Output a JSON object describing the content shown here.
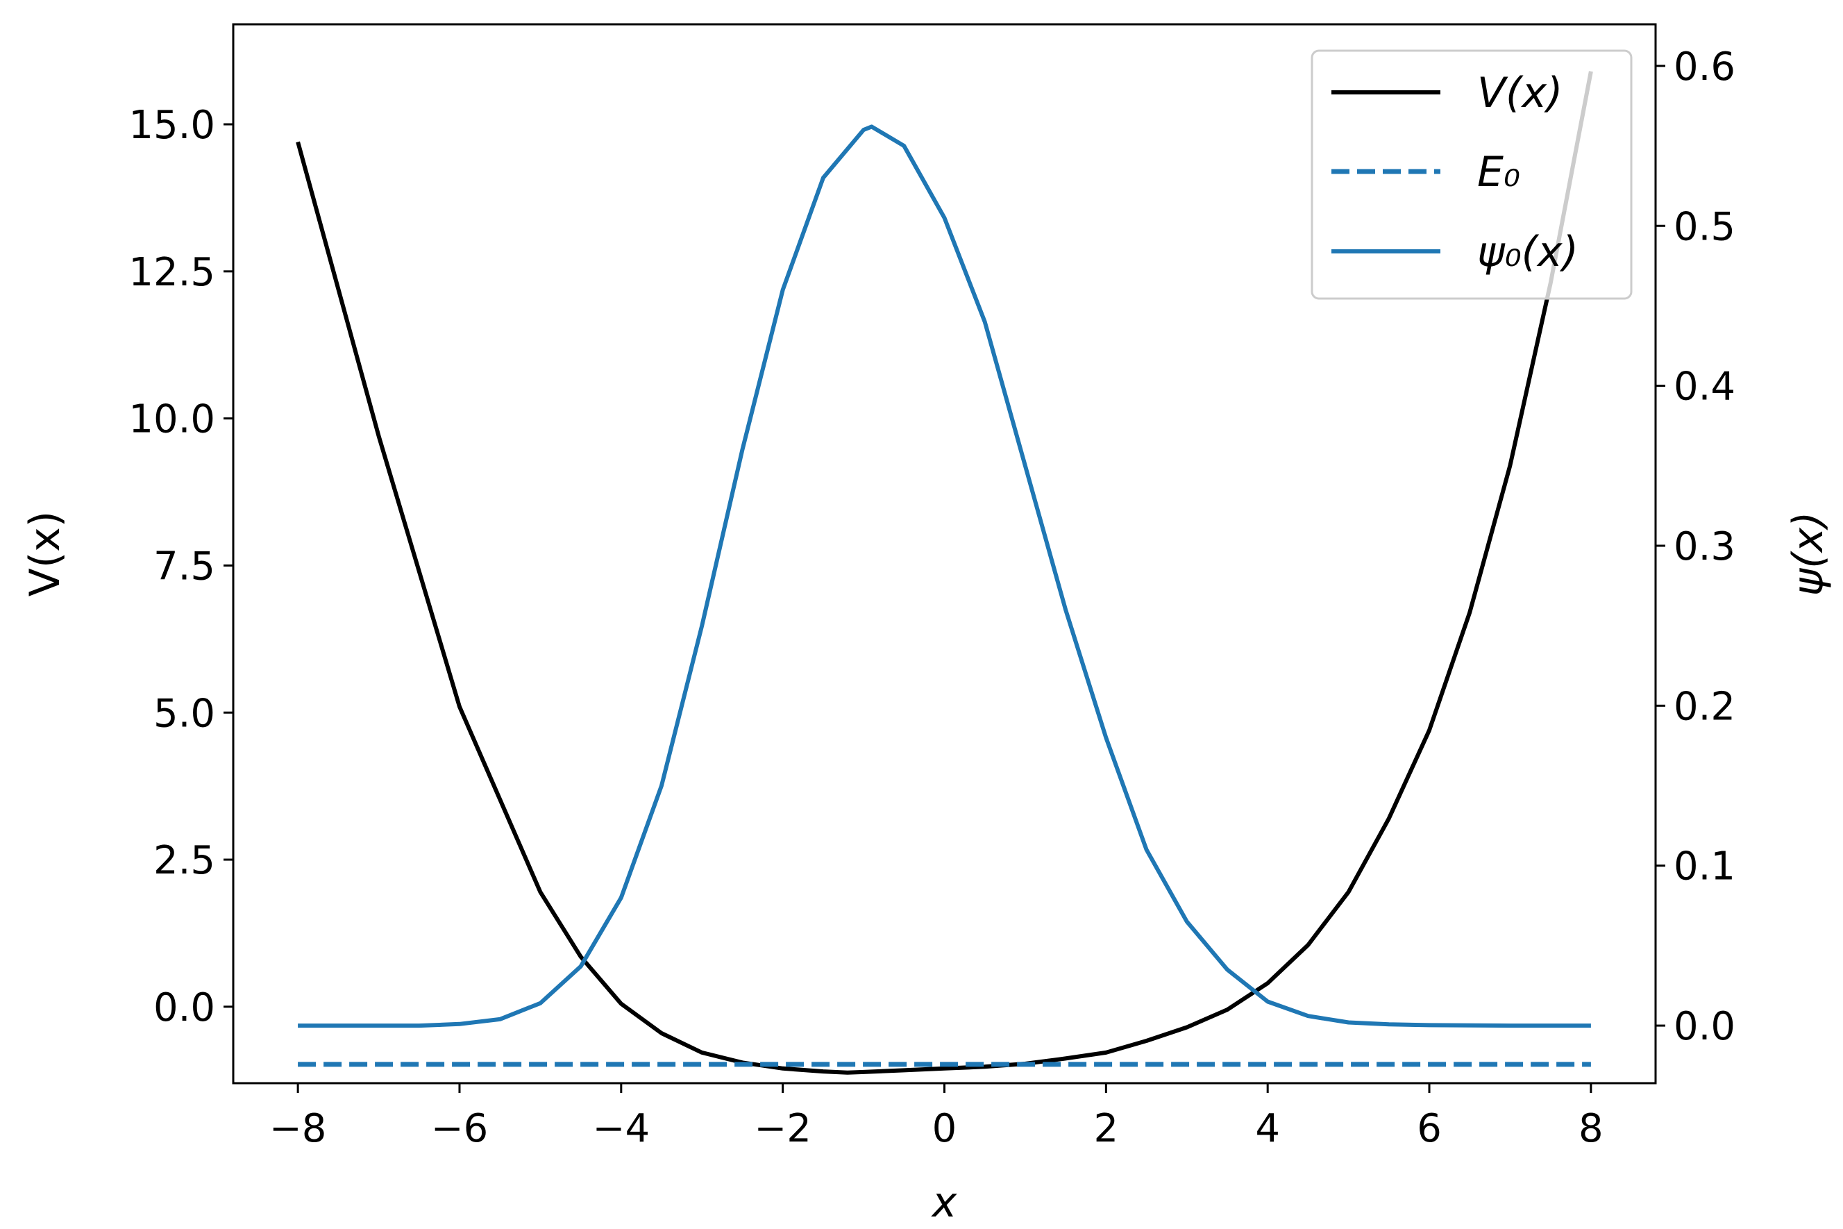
{
  "chart_data": {
    "type": "line",
    "xlabel": "x",
    "ylabel_left": "V(x)",
    "ylabel_right": "ψ(x)",
    "xlim": [
      -8.8,
      8.8
    ],
    "ylim_left": [
      -1.3,
      16.7
    ],
    "ylim_right": [
      -0.036,
      0.626
    ],
    "x_ticks": [
      -8,
      -6,
      -4,
      -2,
      0,
      2,
      4,
      6,
      8
    ],
    "x_tick_labels": [
      "−8",
      "−6",
      "−4",
      "−2",
      "0",
      "2",
      "4",
      "6",
      "8"
    ],
    "y_left_ticks": [
      0.0,
      2.5,
      5.0,
      7.5,
      10.0,
      12.5,
      15.0
    ],
    "y_left_tick_labels": [
      "0.0",
      "2.5",
      "5.0",
      "7.5",
      "10.0",
      "12.5",
      "15.0"
    ],
    "y_right_ticks": [
      0.0,
      0.1,
      0.2,
      0.3,
      0.4,
      0.5,
      0.6
    ],
    "y_right_tick_labels": [
      "0.0",
      "0.1",
      "0.2",
      "0.3",
      "0.4",
      "0.5",
      "0.6"
    ],
    "grid": false,
    "legend_position": "top-right",
    "series": [
      {
        "name": "V(x)",
        "axis": "left",
        "color": "#000000",
        "style": "solid",
        "x": [
          -8,
          -7,
          -6,
          -5,
          -4.5,
          -4,
          -3.5,
          -3,
          -2.5,
          -2,
          -1.5,
          -1.2,
          -1,
          -0.5,
          0,
          0.5,
          1,
          1.5,
          2,
          2.5,
          3,
          3.5,
          4,
          4.5,
          5,
          5.5,
          6,
          6.5,
          7,
          7.5,
          8
        ],
        "y": [
          14.7,
          9.7,
          5.1,
          1.95,
          0.85,
          0.05,
          -0.45,
          -0.78,
          -0.95,
          -1.05,
          -1.1,
          -1.12,
          -1.11,
          -1.08,
          -1.05,
          -1.02,
          -0.97,
          -0.88,
          -0.78,
          -0.58,
          -0.35,
          -0.05,
          0.4,
          1.05,
          1.95,
          3.2,
          4.7,
          6.7,
          9.2,
          12.3,
          15.9
        ]
      },
      {
        "name": "E₀",
        "axis": "left",
        "color": "#1f77b4",
        "style": "dashed",
        "x": [
          -8,
          8
        ],
        "y": [
          -0.98,
          -0.98
        ]
      },
      {
        "name": "ψ₀(x)",
        "axis": "right",
        "color": "#1f77b4",
        "style": "solid",
        "x": [
          -8,
          -6.5,
          -6,
          -5.5,
          -5,
          -4.5,
          -4,
          -3.5,
          -3,
          -2.5,
          -2,
          -1.5,
          -1,
          -0.9,
          -0.5,
          0,
          0.5,
          1,
          1.5,
          2,
          2.5,
          3,
          3.5,
          4,
          4.5,
          5,
          5.5,
          6,
          7,
          8
        ],
        "y": [
          0.0,
          0.0,
          0.001,
          0.004,
          0.014,
          0.037,
          0.08,
          0.15,
          0.25,
          0.36,
          0.46,
          0.53,
          0.56,
          0.562,
          0.55,
          0.505,
          0.44,
          0.35,
          0.26,
          0.18,
          0.11,
          0.065,
          0.035,
          0.015,
          0.006,
          0.002,
          0.0008,
          0.0003,
          0.0,
          0.0
        ]
      }
    ]
  }
}
